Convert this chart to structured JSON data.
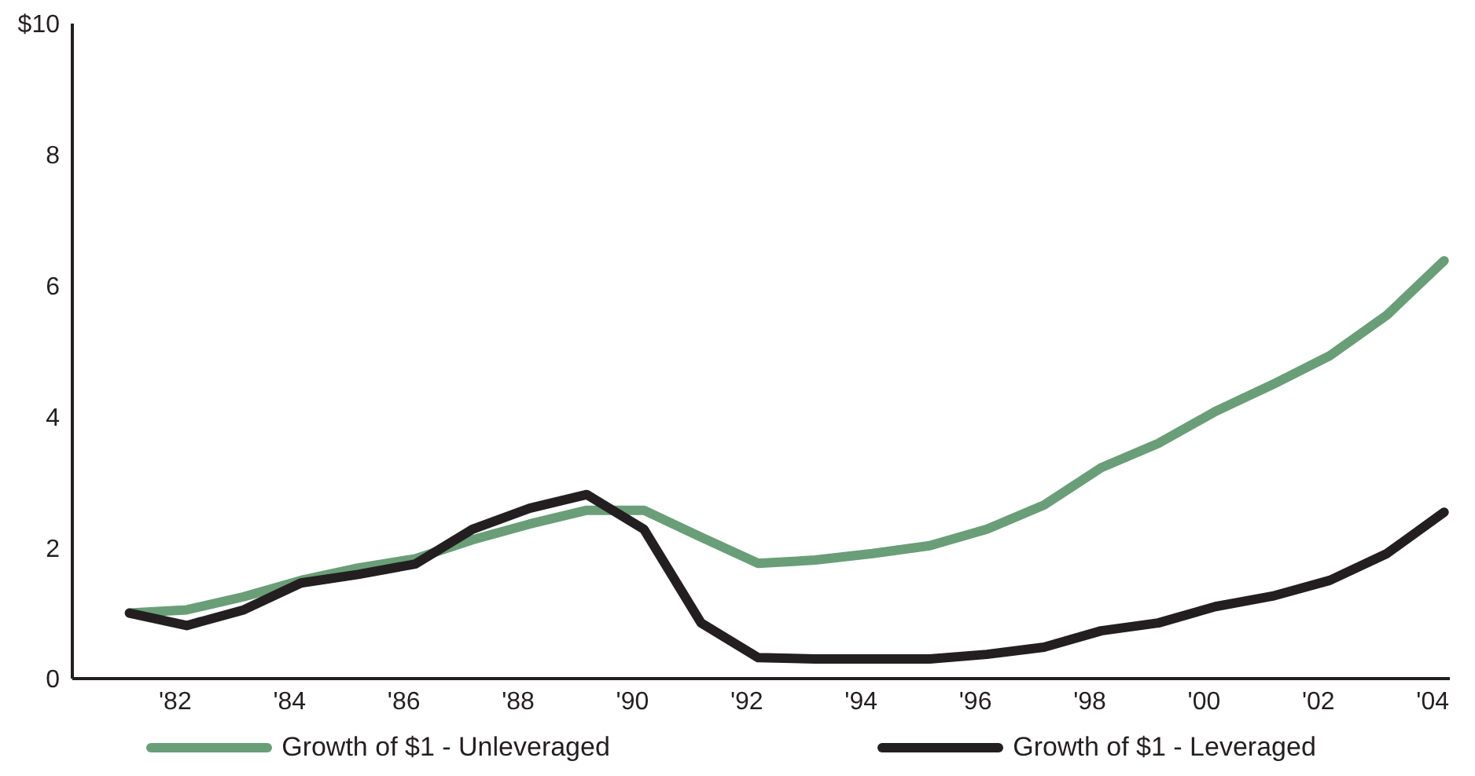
{
  "chart_data": {
    "type": "line",
    "x": [
      1981.2,
      1982.2,
      1983.2,
      1984.2,
      1985.2,
      1986.2,
      1987.2,
      1988.2,
      1989.2,
      1990.2,
      1991.2,
      1992.2,
      1993.2,
      1994.2,
      1995.2,
      1996.2,
      1997.2,
      1998.2,
      1999.2,
      2000.2,
      2001.2,
      2002.2,
      2003.2,
      2004.2
    ],
    "series": [
      {
        "name": "Growth of $1 - Unleveraged",
        "color": "#6a9e78",
        "values": [
          1.0,
          1.05,
          1.25,
          1.5,
          1.69,
          1.83,
          2.12,
          2.36,
          2.57,
          2.57,
          2.16,
          1.76,
          1.81,
          1.91,
          2.03,
          2.28,
          2.65,
          3.22,
          3.59,
          4.08,
          4.49,
          4.93,
          5.55,
          6.38
        ]
      },
      {
        "name": "Growth of $1 - Leveraged",
        "color": "#231f20",
        "values": [
          1.0,
          0.81,
          1.05,
          1.46,
          1.59,
          1.75,
          2.28,
          2.6,
          2.81,
          2.28,
          0.85,
          0.32,
          0.3,
          0.3,
          0.3,
          0.37,
          0.48,
          0.73,
          0.85,
          1.1,
          1.26,
          1.5,
          1.91,
          2.54
        ]
      }
    ],
    "xlim": [
      1980.2,
      2004.3
    ],
    "xticks": [
      {
        "value": 1982,
        "label": "'82"
      },
      {
        "value": 1984,
        "label": "'84"
      },
      {
        "value": 1986,
        "label": "'86"
      },
      {
        "value": 1988,
        "label": "'88"
      },
      {
        "value": 1990,
        "label": "'90"
      },
      {
        "value": 1992,
        "label": "'92"
      },
      {
        "value": 1994,
        "label": "'94"
      },
      {
        "value": 1996,
        "label": "'96"
      },
      {
        "value": 1998,
        "label": "'98"
      },
      {
        "value": 2000,
        "label": "'00"
      },
      {
        "value": 2002,
        "label": "'02"
      },
      {
        "value": 2004,
        "label": "'04"
      }
    ],
    "ylim": [
      0,
      10
    ],
    "yticks": [
      0,
      2,
      4,
      6,
      8,
      {
        "value": 10,
        "label": "$10"
      }
    ],
    "grid": false,
    "legend": "bottom",
    "marker": "none",
    "line_style": "solid"
  }
}
